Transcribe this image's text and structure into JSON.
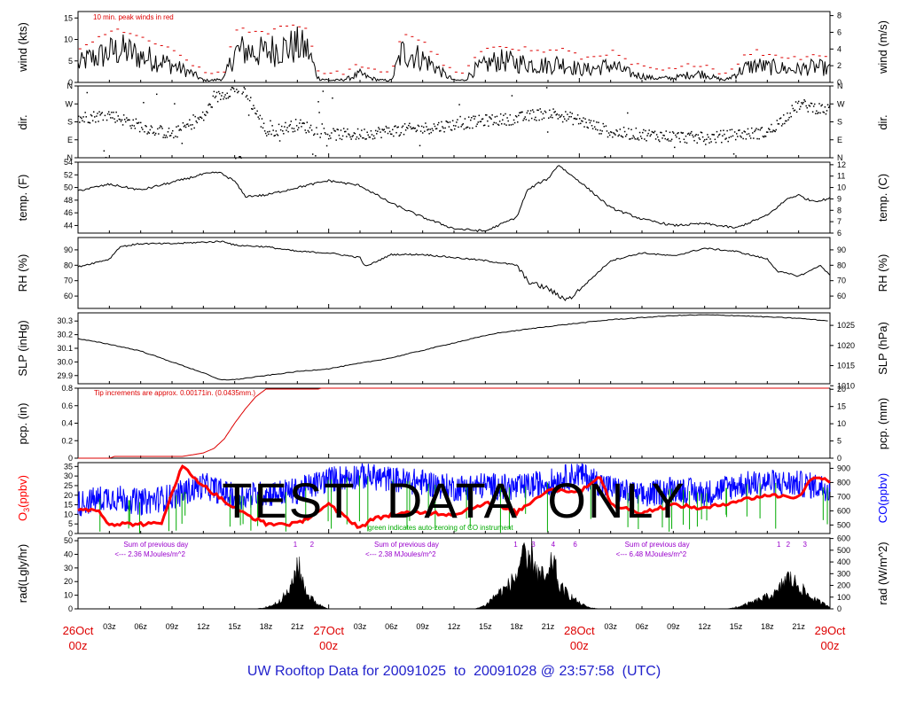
{
  "footer": {
    "prefix": "UW Rooftop Data for",
    "start": "20091025",
    "to": "to",
    "end": "20091028",
    "at": "@ 23:57:58",
    "tz": "(UTC)"
  },
  "watermark": "TEST    DATA    ONLY",
  "colors": {
    "peak": "#dd0000",
    "co": "#0000ff",
    "o3": "#ff0000",
    "co_zero": "#00aa00",
    "precip": "#dd0000",
    "rad_note": "#9900cc",
    "date": "#dd0000"
  },
  "time_axis": {
    "hours_total": 72,
    "major": [
      {
        "hour": 0,
        "day": "26Oct",
        "z": "00z"
      },
      {
        "hour": 24,
        "day": "27Oct",
        "z": "00z"
      },
      {
        "hour": 48,
        "day": "28Oct",
        "z": "00z"
      },
      {
        "hour": 72,
        "day": "29Oct",
        "z": "00z"
      }
    ],
    "minor_labels": [
      "03z",
      "06z",
      "09z",
      "12z",
      "15z",
      "18z",
      "21z"
    ]
  },
  "panels": {
    "wind": {
      "left_label": "wind (kts)",
      "right_label": "wind (m/s)",
      "left_ticks": [
        "0",
        "5",
        "10",
        "15"
      ],
      "right_ticks": [
        "0",
        "2",
        "4",
        "6",
        "8"
      ],
      "annotation": "10 min. peak winds in red",
      "ylim": [
        0,
        16.5
      ]
    },
    "dir": {
      "left_label": "dir.",
      "right_label": "dir.",
      "ticks": [
        "N",
        "E",
        "S",
        "W",
        "N"
      ]
    },
    "temp": {
      "left_label": "temp. (F)",
      "right_label": "temp. (C)",
      "left_ticks": [
        "44",
        "46",
        "48",
        "50",
        "52",
        "54"
      ],
      "right_ticks": [
        "6",
        "7",
        "8",
        "9",
        "10",
        "11",
        "12"
      ],
      "ylim": [
        42.8,
        54
      ]
    },
    "rh": {
      "left_label": "RH (%)",
      "right_label": "RH (%)",
      "left_ticks": [
        "60",
        "70",
        "80",
        "90"
      ],
      "right_ticks": [
        "60",
        "70",
        "80",
        "90"
      ],
      "ylim": [
        52,
        98
      ]
    },
    "slp": {
      "left_label": "SLP (inHg)",
      "right_label": "SLP (hPa)",
      "left_ticks": [
        "29.9",
        "30.0",
        "30.1",
        "30.2",
        "30.3"
      ],
      "right_ticks": [
        "1010",
        "1015",
        "1020",
        "1025"
      ],
      "ylim": [
        29.84,
        30.36
      ]
    },
    "pcp": {
      "left_label": "pcp. (in)",
      "right_label": "pcp. (mm)",
      "left_ticks": [
        "0",
        "0.2",
        "0.4",
        "0.6",
        "0.8"
      ],
      "right_ticks": [
        "0",
        "5",
        "10",
        "15",
        "20"
      ],
      "annotation": "Tip increments are approx. 0.00171in. (0.0435mm.)",
      "ylim": [
        0,
        0.8
      ]
    },
    "chem": {
      "left_label_main": "O",
      "left_label_sub": "3",
      "left_label_unit": "(ppbv)",
      "right_label": "CO(ppbv)",
      "left_ticks": [
        "0",
        "5",
        "10",
        "15",
        "20",
        "25",
        "30",
        "35"
      ],
      "right_ticks": [
        "500",
        "600",
        "700",
        "800",
        "900"
      ],
      "annotation": "green indicates auto-zeroing of CO instrument"
    },
    "rad": {
      "left_label": "rad(Lgly/hr)",
      "right_label": "rad (W/m^2)",
      "left_ticks": [
        "0",
        "10",
        "20",
        "30",
        "40",
        "50"
      ],
      "right_ticks": [
        "0",
        "100",
        "200",
        "300",
        "400",
        "500",
        "600"
      ],
      "day_notes": [
        {
          "hour": 12,
          "line1": "Sum of previous day",
          "line2": "<--- 2.36 MJoules/m^2"
        },
        {
          "hour": 36,
          "line1": "Sum of previous day",
          "line2": "<--- 2.38 MJoules/m^2"
        },
        {
          "hour": 60,
          "line1": "Sum of previous day",
          "line2": "<--- 6.48 MJoules/m^2"
        }
      ],
      "peak_numbers": [
        {
          "hour": 20.8,
          "label": "1"
        },
        {
          "hour": 22.4,
          "label": "2"
        },
        {
          "hour": 41.9,
          "label": "1"
        },
        {
          "hour": 43.6,
          "label": "3"
        },
        {
          "hour": 45.5,
          "label": "4"
        },
        {
          "hour": 47.6,
          "label": "6"
        },
        {
          "hour": 67.1,
          "label": "1"
        },
        {
          "hour": 68.0,
          "label": "2"
        },
        {
          "hour": 69.6,
          "label": "3"
        }
      ]
    }
  },
  "chart_data": [
    {
      "type": "line",
      "title": "10 min. peak winds in red",
      "ylabel": "wind (kts)",
      "ylim": [
        0,
        16.5
      ],
      "series": [
        {
          "name": "wind",
          "hours": [
            0,
            1,
            2,
            3,
            4,
            5,
            6,
            7,
            8,
            9,
            10,
            11,
            12,
            13,
            14,
            15,
            16,
            17,
            18,
            19,
            20,
            21,
            22,
            23,
            24,
            25,
            26,
            27,
            28,
            29,
            30,
            31,
            32,
            33,
            34,
            35,
            36,
            37,
            38,
            39,
            40,
            41,
            42,
            43,
            44,
            45,
            46,
            47,
            48,
            49,
            50,
            51,
            52,
            53,
            54,
            55,
            56,
            57,
            58,
            59,
            60,
            61,
            62,
            63,
            64,
            65,
            66,
            67,
            68,
            69,
            70,
            71,
            72
          ],
          "values": [
            4,
            5.5,
            6,
            7,
            7.5,
            7,
            6,
            5.5,
            5,
            4,
            3,
            2,
            0.5,
            0.5,
            1,
            7,
            7.5,
            7,
            7,
            8,
            8,
            8.5,
            7.5,
            1,
            0.5,
            0.5,
            1,
            2,
            1,
            0.5,
            0.5,
            7,
            6.5,
            5.5,
            4,
            2,
            0.5,
            0.5,
            3,
            4,
            5,
            5,
            4.5,
            4.5,
            4,
            4,
            4.5,
            4,
            3,
            3,
            3.5,
            4,
            3,
            2,
            1.5,
            1,
            1,
            1,
            1.5,
            2,
            2,
            1,
            0.5,
            2,
            3.5,
            4,
            3.5,
            3.5,
            3,
            3,
            3.5,
            3.5,
            3
          ]
        }
      ]
    },
    {
      "type": "scatter",
      "ylabel": "dir.",
      "yticks": [
        "N",
        "E",
        "S",
        "W",
        "N"
      ]
    },
    {
      "type": "line",
      "ylabel": "temp. (F)",
      "ylim": [
        42.8,
        54
      ],
      "series": [
        {
          "name": "temp",
          "hours": [
            0,
            3,
            6,
            9,
            12,
            13.5,
            15,
            16,
            18,
            21,
            24,
            27,
            30,
            33,
            36,
            39,
            42,
            43,
            44,
            45,
            46,
            47,
            48,
            51,
            54,
            57,
            60,
            63,
            66,
            68,
            69,
            70,
            71,
            72
          ],
          "values": [
            49.5,
            50.5,
            49.6,
            50.8,
            52.1,
            52.4,
            51.0,
            48.6,
            48.8,
            50.0,
            51.1,
            50.3,
            47.5,
            45.3,
            43.5,
            43.1,
            45.3,
            49.5,
            50.6,
            51.4,
            53.6,
            52.2,
            51.0,
            46.8,
            45.0,
            44.0,
            44.3,
            43.6,
            45.6,
            48.3,
            48.8,
            48.0,
            47.9,
            48.3
          ]
        }
      ]
    },
    {
      "type": "line",
      "ylabel": "RH (%)",
      "ylim": [
        52,
        98
      ],
      "series": [
        {
          "name": "RH",
          "hours": [
            0,
            3,
            4,
            6,
            9,
            12,
            14,
            15,
            18,
            21,
            24,
            27,
            27.5,
            30,
            33,
            36,
            39,
            42,
            43,
            44,
            45,
            46,
            47,
            48,
            51,
            54,
            57,
            60,
            63,
            66,
            67,
            69,
            70,
            71,
            72
          ],
          "values": [
            79,
            84,
            92,
            94,
            94,
            95,
            95.5,
            93,
            92,
            89,
            88,
            85,
            79,
            87,
            87,
            85,
            83,
            80,
            70,
            67,
            65,
            60,
            58,
            64,
            83,
            88,
            86,
            91,
            89,
            84,
            76,
            73,
            76,
            80,
            74
          ]
        }
      ]
    },
    {
      "type": "line",
      "ylabel": "SLP (inHg)",
      "ylim": [
        29.84,
        30.36
      ],
      "series": [
        {
          "name": "SLP",
          "hours": [
            0,
            3,
            6,
            9,
            12,
            13.5,
            15,
            18,
            21,
            24,
            30,
            36,
            40,
            45,
            51,
            57,
            60,
            63,
            66,
            69,
            72
          ],
          "values": [
            30.17,
            30.13,
            30.08,
            30.0,
            29.92,
            29.87,
            29.87,
            29.9,
            29.93,
            29.95,
            30.03,
            30.14,
            30.21,
            30.26,
            30.31,
            30.34,
            30.345,
            30.34,
            30.33,
            30.32,
            30.3
          ]
        }
      ]
    },
    {
      "type": "line",
      "title": "Tip increments are approx. 0.00171in. (0.0435mm.)",
      "ylabel": "pcp. (in)",
      "ylim": [
        0,
        0.8
      ],
      "series": [
        {
          "name": "pcp",
          "hours": [
            0,
            3,
            3.5,
            6,
            10,
            12,
            13,
            14,
            15,
            16,
            17,
            18,
            20,
            23,
            23.5,
            24,
            28,
            28.5,
            40,
            72
          ],
          "values": [
            0,
            0,
            0.02,
            0.02,
            0.02,
            0.06,
            0.11,
            0.22,
            0.4,
            0.56,
            0.7,
            0.79,
            0.79,
            0.79,
            0.81,
            0.81,
            0.81,
            0.83,
            0.83,
            0.83
          ]
        }
      ]
    },
    {
      "type": "line",
      "title": "green indicates auto-zeroing of CO instrument",
      "ylabel": "O3 (ppbv)",
      "series": [
        {
          "name": "O3",
          "hours": [
            0,
            2,
            3,
            4,
            6,
            8,
            9,
            10,
            12,
            15,
            18,
            21,
            24,
            27,
            28,
            30,
            33,
            36,
            39,
            42,
            45,
            48,
            50,
            51,
            54,
            57,
            60,
            63,
            66,
            69,
            70,
            71,
            72
          ],
          "values": [
            13,
            12,
            5,
            5,
            5,
            5,
            22,
            35,
            25,
            13,
            5,
            5,
            15,
            3,
            7,
            10,
            11,
            10,
            16,
            11,
            23,
            22,
            30,
            15,
            11,
            15,
            13,
            17,
            20,
            19,
            27,
            30,
            27
          ]
        },
        {
          "name": "CO",
          "hours": [
            0,
            3,
            6,
            9,
            12,
            15,
            18,
            21,
            24,
            27,
            30,
            33,
            36,
            39,
            42,
            45,
            48,
            51,
            54,
            57,
            60,
            63,
            66,
            69,
            72
          ],
          "values": [
            650,
            700,
            660,
            700,
            780,
            700,
            720,
            740,
            820,
            850,
            820,
            800,
            760,
            780,
            760,
            800,
            860,
            760,
            700,
            760,
            720,
            780,
            800,
            790,
            760
          ]
        }
      ]
    },
    {
      "type": "area",
      "ylabel": "rad(Lgly/hr)",
      "ylim": [
        0,
        52
      ],
      "series": [
        {
          "name": "rad",
          "hours": [
            0,
            17,
            18,
            19,
            20,
            20.5,
            21,
            21.5,
            22,
            23,
            24,
            38,
            39,
            40,
            41,
            42,
            42.5,
            43,
            43.5,
            44,
            45,
            45.5,
            46,
            47,
            48,
            49,
            50,
            62,
            63,
            65,
            67,
            67.5,
            68,
            69,
            70,
            71,
            72
          ],
          "values": [
            0,
            0,
            1,
            5,
            13,
            20,
            40,
            24,
            12,
            4,
            0,
            0,
            3,
            12,
            18,
            28,
            48,
            35,
            48,
            30,
            25,
            45,
            20,
            12,
            5,
            1,
            0,
            0,
            1,
            7,
            14,
            23,
            27,
            20,
            11,
            6,
            2
          ]
        }
      ]
    }
  ]
}
